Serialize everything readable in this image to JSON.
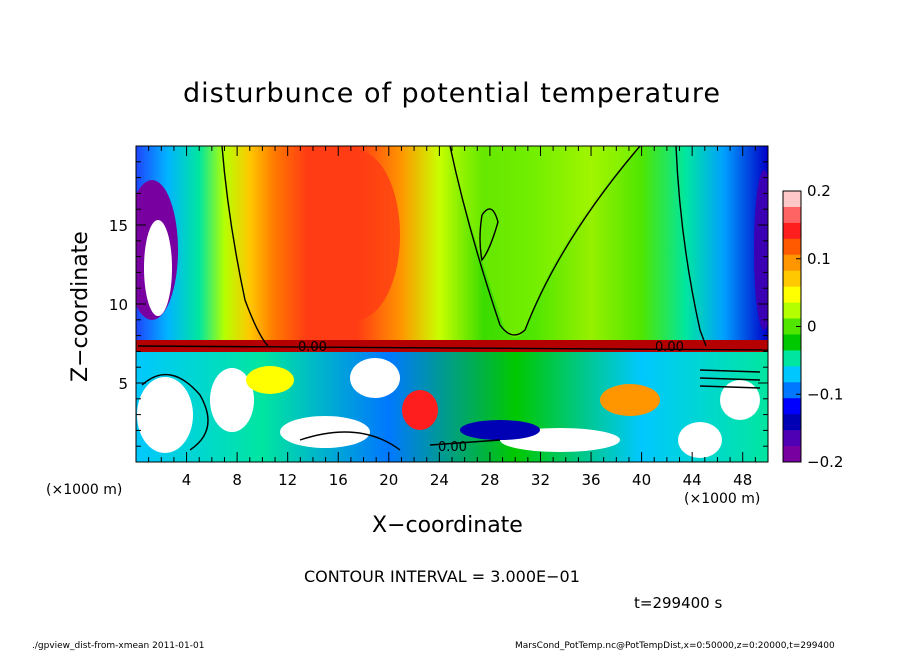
{
  "chart_data": {
    "type": "heatmap",
    "title": "disturbunce of potential temperature",
    "xlabel": "X−coordinate",
    "ylabel": "Z−coordinate",
    "x_unit_left": "(×1000 m)",
    "x_unit_right": "(×1000 m)",
    "xlim": [
      0,
      50
    ],
    "ylim": [
      0,
      20
    ],
    "x_ticks": [
      "4",
      "8",
      "12",
      "16",
      "20",
      "24",
      "28",
      "32",
      "36",
      "40",
      "44",
      "48"
    ],
    "y_ticks": [
      "5",
      "10",
      "15"
    ],
    "colorbar": {
      "range": [
        -0.2,
        0.2
      ],
      "tick_labels": [
        "0.2",
        "0.1",
        "0",
        "−0.1",
        "−0.2"
      ],
      "colors": [
        "#ffc8c8",
        "#ff6464",
        "#ff1e1e",
        "#ff5a00",
        "#ff9600",
        "#ffc800",
        "#ffff00",
        "#b4ff00",
        "#50e600",
        "#00c800",
        "#00e6a0",
        "#00c8ff",
        "#0078ff",
        "#0000ff",
        "#0000b4",
        "#5000b4",
        "#7800a0"
      ]
    },
    "contour_labels": [
      "0.00",
      "0.00",
      "0.00"
    ],
    "contour_interval": "CONTOUR INTERVAL = 3.000E−01",
    "time": "t=299400 s",
    "grid": false
  },
  "footer": {
    "left": "./gpview_dist-from-xmean   2011-01-01",
    "right": "MarsCond_PotTemp.nc@PotTempDist,x=0:50000,z=0:20000,t=299400"
  }
}
